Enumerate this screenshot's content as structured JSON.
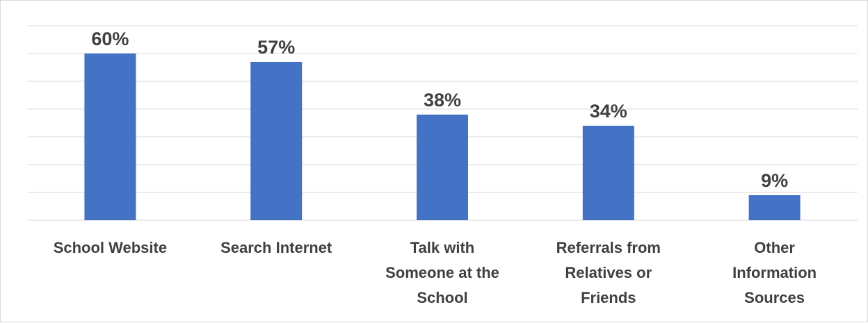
{
  "chart_data": {
    "type": "bar",
    "categories": [
      "School Website",
      "Search Internet",
      "Talk with Someone at the School",
      "Referrals from Relatives or Friends",
      "Other Information Sources"
    ],
    "category_lines": [
      [
        "School Website"
      ],
      [
        "Search Internet"
      ],
      [
        "Talk with",
        "Someone at the",
        "School"
      ],
      [
        "Referrals from",
        "Relatives or",
        "Friends"
      ],
      [
        "Other",
        "Information",
        "Sources"
      ]
    ],
    "values": [
      60,
      57,
      38,
      34,
      9
    ],
    "data_labels": [
      "60%",
      "57%",
      "38%",
      "34%",
      "9%"
    ],
    "title": "",
    "xlabel": "",
    "ylabel": "",
    "ylim": [
      0,
      70
    ],
    "grid": true,
    "legend": "none",
    "colors": {
      "bar": "#4472c4",
      "grid": "#d9d9d9",
      "text": "#404040"
    }
  }
}
